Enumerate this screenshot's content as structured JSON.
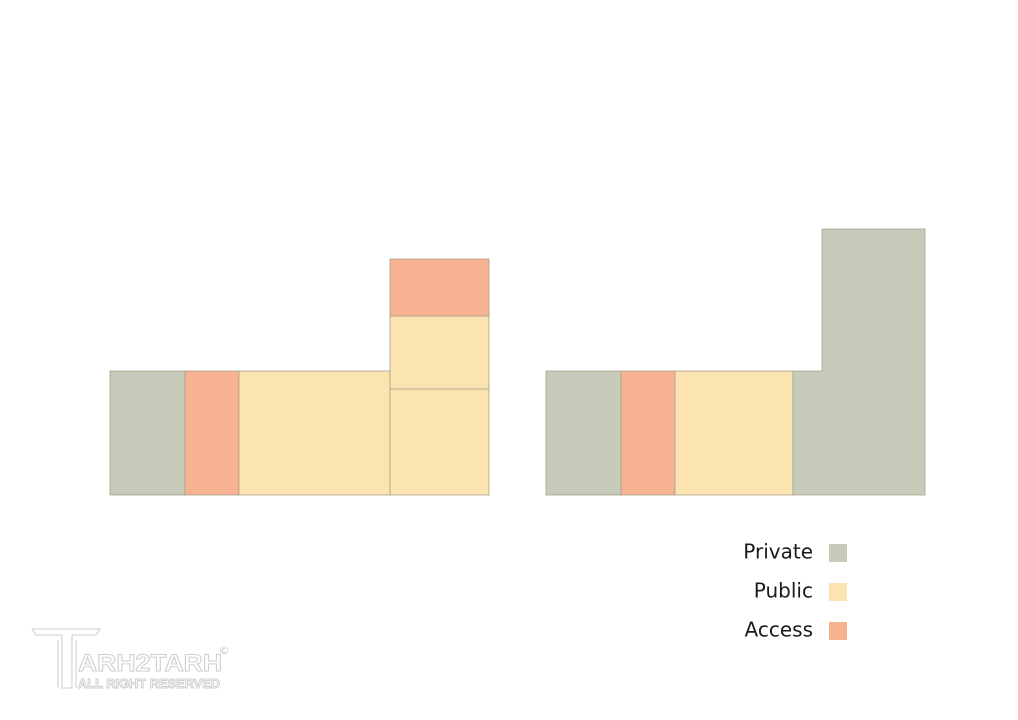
{
  "legend": [
    {
      "label": "Private",
      "color": "#c7cbba"
    },
    {
      "label": "Public",
      "color": "#fce4b1"
    },
    {
      "label": "Access",
      "color": "#f7b292"
    }
  ],
  "watermark": {
    "brand": "ARH2TARH",
    "rights": "ALL RIGHT RESERVED",
    "copyright": "©"
  }
}
